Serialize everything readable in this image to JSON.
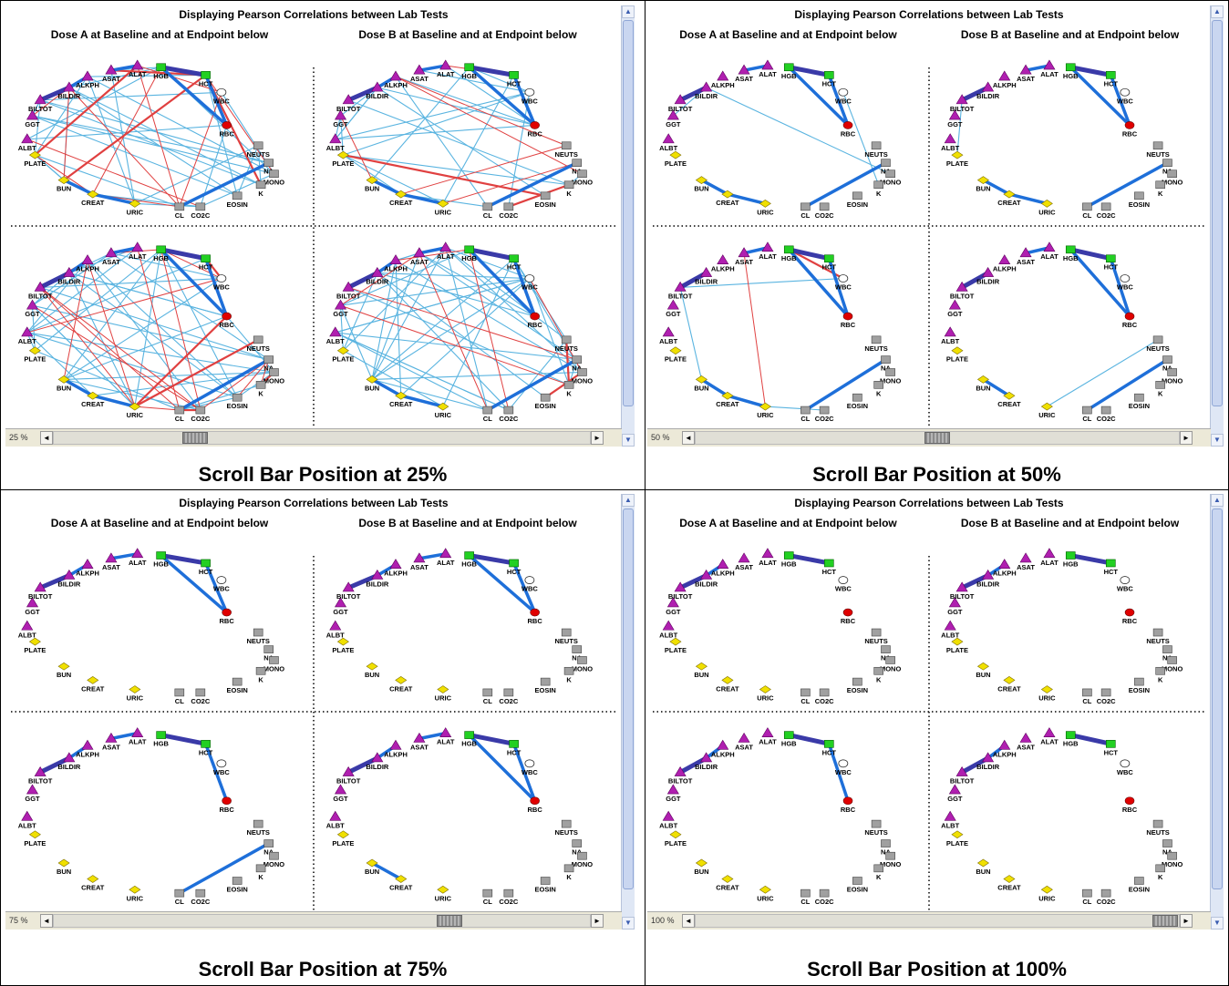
{
  "window_title": "Displaying Pearson Correlations between Lab Tests",
  "panel_titles": {
    "dose_a": "Dose A at Baseline  and at Endpoint below",
    "dose_b": "Dose B at Baseline and at Endpoint below"
  },
  "scroll_arrows": {
    "up": "▲",
    "down": "▼",
    "left": "◄",
    "right": "►"
  },
  "colors": {
    "positive_light": "#5ab4e0",
    "positive_strong": "#1e6fd9",
    "positive_very_strong": "#3a3aa8",
    "negative": "#e04040",
    "triangle_node": "#b01fb0",
    "diamond_node": "#f0e000",
    "hgb_hct_node": "#22d022",
    "rbc_node": "#e00000",
    "square_node": "#a0a0a0"
  },
  "nodes": [
    {
      "id": "HGB",
      "label": "HGB",
      "shape": "square-green"
    },
    {
      "id": "HCT",
      "label": "HCT",
      "shape": "square-green"
    },
    {
      "id": "WBC",
      "label": "WBC",
      "shape": "ellipse-white"
    },
    {
      "id": "RBC",
      "label": "RBC",
      "shape": "ellipse-red"
    },
    {
      "id": "NEUTS",
      "label": "NEUTS",
      "shape": "square-gray"
    },
    {
      "id": "NA",
      "label": "NA",
      "shape": "square-gray"
    },
    {
      "id": "MONO",
      "label": "MONO",
      "shape": "square-gray"
    },
    {
      "id": "K",
      "label": "K",
      "shape": "square-gray"
    },
    {
      "id": "EOSIN",
      "label": "EOSIN",
      "shape": "square-gray"
    },
    {
      "id": "CO2C",
      "label": "CO2C",
      "shape": "square-gray"
    },
    {
      "id": "CL",
      "label": "CL",
      "shape": "square-gray"
    },
    {
      "id": "URIC",
      "label": "URIC",
      "shape": "diamond"
    },
    {
      "id": "CREAT",
      "label": "CREAT",
      "shape": "diamond"
    },
    {
      "id": "BUN",
      "label": "BUN",
      "shape": "diamond"
    },
    {
      "id": "PLATE",
      "label": "PLATE",
      "shape": "diamond"
    },
    {
      "id": "ALBT",
      "label": "ALBT",
      "shape": "triangle"
    },
    {
      "id": "GGT",
      "label": "GGT",
      "shape": "triangle"
    },
    {
      "id": "BILTOT",
      "label": "BILTOT",
      "shape": "triangle"
    },
    {
      "id": "BILDIR",
      "label": "BILDIR",
      "shape": "triangle"
    },
    {
      "id": "ALKPH",
      "label": "ALKPH",
      "shape": "triangle"
    },
    {
      "id": "ASAT",
      "label": "ASAT",
      "shape": "triangle"
    },
    {
      "id": "ALAT",
      "label": "ALAT",
      "shape": "triangle"
    }
  ],
  "strong_edges": [
    [
      "HGB",
      "HCT"
    ],
    [
      "HCT",
      "RBC"
    ],
    [
      "HGB",
      "RBC"
    ],
    [
      "BILTOT",
      "BILDIR"
    ],
    [
      "ASAT",
      "ALAT"
    ],
    [
      "BILDIR",
      "ALKPH"
    ],
    [
      "BUN",
      "CREAT"
    ],
    [
      "CREAT",
      "URIC"
    ],
    [
      "CL",
      "NA"
    ]
  ],
  "quadrants": [
    {
      "key": "q25",
      "zoom": "25 %",
      "caption": "Scroll Bar Position at 25%",
      "scroll_fraction": 0.25,
      "panels": {
        "a_top": {
          "strong": [
            0,
            1,
            2,
            3,
            4,
            5,
            6,
            7,
            8
          ],
          "extra_pos": 34,
          "extra_neg": 16
        },
        "b_top": {
          "strong": [
            0,
            1,
            2,
            3,
            4,
            5,
            6,
            7,
            8
          ],
          "extra_pos": 26,
          "extra_neg": 8
        },
        "a_bottom": {
          "strong": [
            0,
            1,
            2,
            3,
            4,
            5,
            6,
            7,
            8
          ],
          "extra_pos": 42,
          "extra_neg": 22
        },
        "b_bottom": {
          "strong": [
            0,
            1,
            2,
            3,
            4,
            5,
            6,
            7,
            8
          ],
          "extra_pos": 44,
          "extra_neg": 10
        }
      }
    },
    {
      "key": "q50",
      "zoom": "50 %",
      "caption": "Scroll Bar Position at 50%",
      "scroll_fraction": 0.5,
      "panels": {
        "a_top": {
          "strong": [
            0,
            1,
            2,
            3,
            4,
            6,
            7,
            8
          ],
          "extra_pos": 3,
          "extra_neg": 0
        },
        "b_top": {
          "strong": [
            0,
            1,
            2,
            3,
            4,
            6,
            7,
            8
          ],
          "extra_pos": 1,
          "extra_neg": 0
        },
        "a_bottom": {
          "strong": [
            0,
            1,
            2,
            3,
            4,
            6,
            7,
            8
          ],
          "extra_pos": 3,
          "extra_neg": 2
        },
        "b_bottom": {
          "strong": [
            0,
            1,
            2,
            3,
            4,
            6,
            8
          ],
          "extra_pos": 1,
          "extra_neg": 0
        }
      }
    },
    {
      "key": "q75",
      "zoom": "75 %",
      "caption": "Scroll Bar Position at 75%",
      "scroll_fraction": 0.75,
      "panels": {
        "a_top": {
          "strong": [
            0,
            1,
            2,
            3,
            4,
            5
          ],
          "extra_pos": 0,
          "extra_neg": 0
        },
        "b_top": {
          "strong": [
            0,
            1,
            2,
            3,
            4,
            5
          ],
          "extra_pos": 0,
          "extra_neg": 0
        },
        "a_bottom": {
          "strong": [
            0,
            1,
            3,
            4,
            5,
            8
          ],
          "extra_pos": 0,
          "extra_neg": 0
        },
        "b_bottom": {
          "strong": [
            0,
            1,
            2,
            3,
            4,
            5,
            6
          ],
          "extra_pos": 0,
          "extra_neg": 0
        }
      }
    },
    {
      "key": "q100",
      "zoom": "100 %",
      "caption": "Scroll Bar Position at 100%",
      "scroll_fraction": 1.0,
      "panels": {
        "a_top": {
          "strong": [
            0,
            3,
            5
          ],
          "extra_pos": 0,
          "extra_neg": 0
        },
        "b_top": {
          "strong": [
            0,
            3,
            5
          ],
          "extra_pos": 0,
          "extra_neg": 0
        },
        "a_bottom": {
          "strong": [
            0,
            1,
            3,
            5
          ],
          "extra_pos": 0,
          "extra_neg": 0
        },
        "b_bottom": {
          "strong": [
            0,
            3,
            5
          ],
          "extra_pos": 0,
          "extra_neg": 0
        }
      }
    }
  ]
}
